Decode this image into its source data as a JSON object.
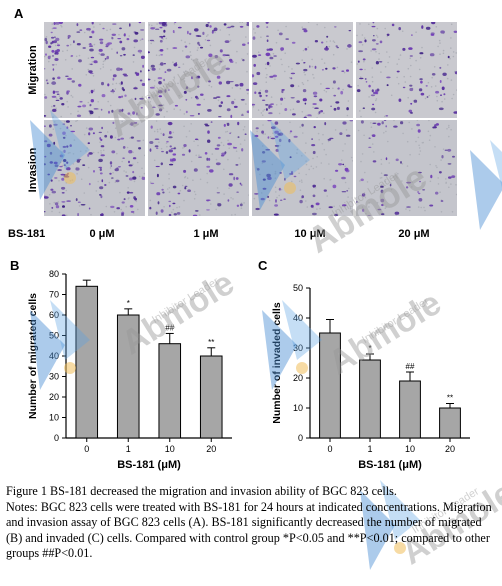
{
  "panelA": {
    "letter": "A",
    "rows": [
      "Migration",
      "Invasion"
    ],
    "treatment_label": "BS-181",
    "concentrations": [
      "0 μM",
      "1 μM",
      "10 μM",
      "20 μM"
    ]
  },
  "watermark": {
    "brand": "Abmole",
    "tagline": "Inhibitor Leader"
  },
  "chart_data": [
    {
      "type": "bar",
      "panel": "B",
      "categories": [
        "0",
        "1",
        "10",
        "20"
      ],
      "values": [
        74,
        60,
        46,
        40
      ],
      "errors": [
        3,
        3,
        5,
        4
      ],
      "significance": [
        "",
        "*",
        "##",
        "**"
      ],
      "xlabel": "BS-181 (μM)",
      "ylabel": "Number of migrated cells",
      "ylim": [
        0,
        80
      ],
      "yticks": [
        0,
        10,
        20,
        30,
        40,
        50,
        60,
        70,
        80
      ],
      "bar_color": "#a6a6a6"
    },
    {
      "type": "bar",
      "panel": "C",
      "categories": [
        "0",
        "1",
        "10",
        "20"
      ],
      "values": [
        35,
        26,
        19,
        10
      ],
      "errors": [
        4.5,
        2,
        3,
        1.5
      ],
      "significance": [
        "",
        "*",
        "##",
        "**"
      ],
      "xlabel": "BS-181 (μM)",
      "ylabel": "Number of invaded cells",
      "ylim": [
        0,
        50
      ],
      "yticks": [
        0,
        10,
        20,
        30,
        40,
        50
      ],
      "bar_color": "#a6a6a6"
    }
  ],
  "caption": [
    "Figure 1 BS-181 decreased the migration and invasion ability of BGC 823 cells.",
    "Notes: BGC 823 cells were treated with BS-181 for 24 hours at indicated concentrations. Migration and invasion assay of BGC 823 cells (A). BS-181 significantly decreased the number of migrated (B) and invaded (C) cells. Compared with control group *P<0.05 and **P<0.01; compared to other groups ##P<0.01."
  ]
}
